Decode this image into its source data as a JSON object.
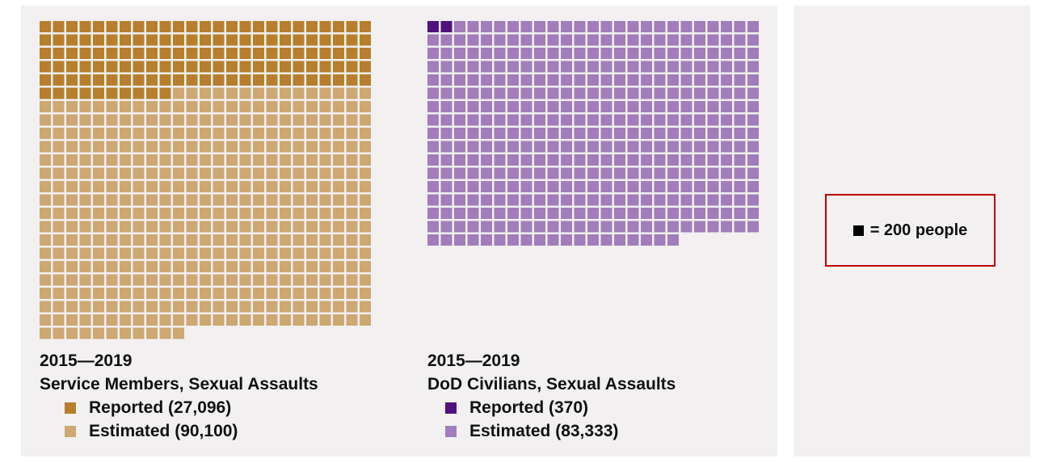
{
  "chart_data": [
    {
      "type": "waffle",
      "unit_people": 200,
      "period": "2015—2019",
      "title": "Service Members, Sexual Assaults",
      "columns": 25,
      "series": [
        {
          "name": "Reported",
          "value": 27096,
          "label": "Reported (27,096)",
          "color": "#b77f2d"
        },
        {
          "name": "Estimated",
          "value": 90100,
          "label": "Estimated (90,100)",
          "color": "#cda872"
        }
      ]
    },
    {
      "type": "waffle",
      "unit_people": 200,
      "period": "2015—2019",
      "title": "DoD Civilians, Sexual Assaults",
      "columns": 25,
      "series": [
        {
          "name": "Reported",
          "value": 370,
          "label": "Reported (370)",
          "color": "#4f1380"
        },
        {
          "name": "Estimated",
          "value": 83333,
          "label": "Estimated (83,333)",
          "color": "#a17ebb"
        }
      ]
    }
  ],
  "key": {
    "text": "= 200 people",
    "icon": "black-square-icon"
  }
}
